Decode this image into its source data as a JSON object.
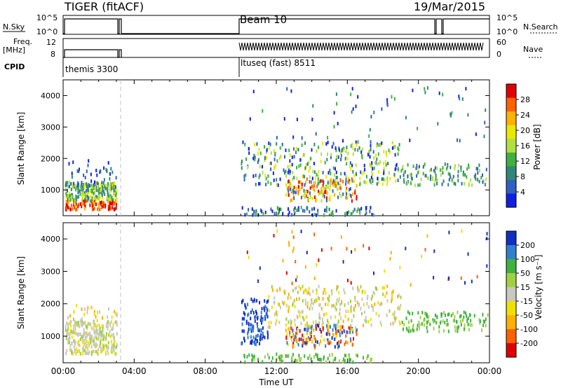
{
  "header": {
    "radar": "TIGER (fitACF)",
    "beam": "Beam 10",
    "date": "19/Mar/2015"
  },
  "top_panels": {
    "nsky_label": "N.Sky",
    "nsky_ticks": [
      "10^5",
      "10^0"
    ],
    "nsearch_label": "N.Search",
    "nsearch_ticks": [
      "10^5",
      "10^0"
    ],
    "freq_label": "Freq.",
    "freq_unit": "[MHz]",
    "freq_ticks": [
      "12",
      "8"
    ],
    "nave_label": "Nave",
    "nave_ticks": [
      "60",
      "0"
    ],
    "cpid_label": "CPID",
    "cpid_segments": [
      {
        "name": "themis 3300",
        "start_hour": 0.0,
        "end_hour": 3.2
      },
      {
        "name": "ltuseq (fast) 8511",
        "start_hour": 9.9,
        "end_hour": 24.0
      }
    ]
  },
  "power_colorbar": {
    "label": "Power [dB]",
    "ticks": [
      "28",
      "24",
      "20",
      "16",
      "12",
      "8",
      "4"
    ],
    "colors": [
      "#e00000",
      "#ff6000",
      "#ffb000",
      "#e8e800",
      "#b0e040",
      "#40b040",
      "#308878",
      "#3060c0",
      "#1020e0"
    ]
  },
  "velocity_colorbar": {
    "label": "Velocity [m s⁻¹]",
    "ticks": [
      "200",
      "100",
      "50",
      "15",
      "-15",
      "-50",
      "-100",
      "-200"
    ],
    "colors": [
      "#1030c0",
      "#3080d0",
      "#40b040",
      "#a0d040",
      "#c8c8c0",
      "#f0e000",
      "#ffb000",
      "#ff6000",
      "#e00000"
    ]
  },
  "chart_data": [
    {
      "type": "heatmap",
      "title": "Power",
      "ylabel": "Slant Range [km]",
      "xlabel": "",
      "ylim": [
        180,
        4500
      ],
      "yticks": [
        "4000",
        "3000",
        "2000",
        "1000"
      ],
      "xlim": [
        0,
        24
      ],
      "regions": [
        {
          "x": [
            0.0,
            3.1
          ],
          "y": [
            800,
            1300
          ],
          "level": "12-20 dB"
        },
        {
          "x": [
            0.0,
            3.1
          ],
          "y": [
            400,
            700
          ],
          "level": "24-28 dB"
        },
        {
          "x": [
            10.0,
            24.0
          ],
          "y": [
            200,
            2800
          ],
          "level": "4-20 dB"
        }
      ]
    },
    {
      "type": "heatmap",
      "title": "Velocity",
      "ylabel": "Slant Range [km]",
      "xlabel": "Time UT",
      "ylim": [
        180,
        4500
      ],
      "yticks": [
        "4000",
        "3000",
        "2000",
        "1000"
      ],
      "xlim": [
        0,
        24
      ],
      "xticks": [
        "00:00",
        "04:00",
        "08:00",
        "12:00",
        "16:00",
        "20:00",
        "00:00"
      ],
      "regions": [
        {
          "x": [
            0.0,
            3.1
          ],
          "y": [
            500,
            1800
          ],
          "level": "-15 to 15 m/s"
        },
        {
          "x": [
            10.0,
            24.0
          ],
          "y": [
            200,
            2800
          ],
          "level": "-200 to 200 m/s"
        }
      ]
    }
  ]
}
